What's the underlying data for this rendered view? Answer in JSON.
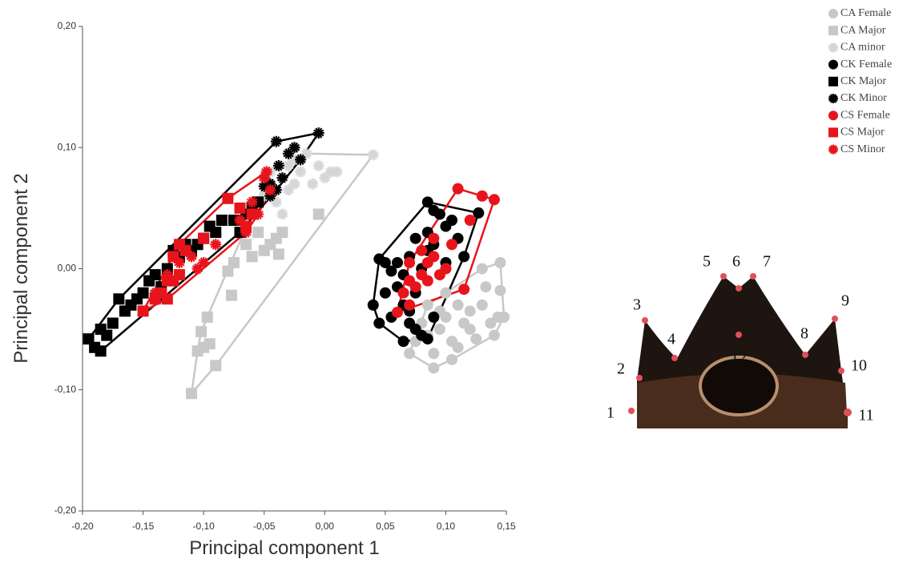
{
  "chart_data": {
    "type": "scatter",
    "x_label": "Principal component 1",
    "y_label": "Principal component 2",
    "xlim": [
      -0.2,
      0.15
    ],
    "ylim": [
      -0.2,
      0.2
    ],
    "xticks": [
      {
        "value": -0.2,
        "label": "-0,20"
      },
      {
        "value": -0.15,
        "label": "-0,15"
      },
      {
        "value": -0.1,
        "label": "-0,10"
      },
      {
        "value": -0.05,
        "label": "-0,05"
      },
      {
        "value": 0,
        "label": "0,00"
      },
      {
        "value": 0.05,
        "label": "0,05"
      },
      {
        "value": 0.1,
        "label": "0,10"
      },
      {
        "value": 0.15,
        "label": "0,15"
      }
    ],
    "yticks": [
      {
        "value": -0.2,
        "label": "-0,20"
      },
      {
        "value": -0.1,
        "label": "-0,10"
      },
      {
        "value": 0,
        "label": "0,00"
      },
      {
        "value": 0.1,
        "label": "0,10"
      },
      {
        "value": 0.2,
        "label": "0,20"
      }
    ],
    "legend": "top-right",
    "hull_groups": [
      [
        0
      ],
      [
        1,
        2
      ],
      [
        3
      ],
      [
        4,
        5
      ],
      [
        6
      ],
      [
        7,
        8
      ]
    ],
    "series": [
      {
        "name": "CA Female",
        "color": "#c8c8c8",
        "marker": "circle",
        "x": [
          0.07,
          0.09,
          0.075,
          0.085,
          0.095,
          0.1,
          0.105,
          0.11,
          0.115,
          0.12,
          0.12,
          0.13,
          0.133,
          0.137,
          0.14,
          0.143,
          0.145,
          0.145,
          0.148,
          0.09,
          0.105,
          0.125,
          0.11,
          0.095,
          0.08,
          0.1,
          0.13,
          0.085
        ],
        "values": [
          -0.07,
          -0.082,
          -0.06,
          -0.055,
          -0.05,
          -0.04,
          -0.06,
          -0.065,
          -0.045,
          -0.05,
          -0.035,
          -0.03,
          -0.015,
          -0.045,
          -0.055,
          -0.04,
          0.005,
          -0.018,
          -0.04,
          -0.07,
          -0.075,
          -0.058,
          -0.03,
          -0.035,
          -0.045,
          -0.02,
          0,
          -0.03
        ]
      },
      {
        "name": "CA Major",
        "color": "#c8c8c8",
        "marker": "square",
        "x": [
          -0.11,
          -0.105,
          -0.1,
          -0.102,
          -0.097,
          -0.095,
          -0.09,
          -0.08,
          -0.077,
          -0.06,
          -0.05,
          -0.04,
          -0.035,
          -0.038,
          -0.045,
          -0.005,
          -0.075,
          -0.065,
          -0.055
        ],
        "values": [
          -0.103,
          -0.068,
          -0.065,
          -0.052,
          -0.04,
          -0.062,
          -0.08,
          -0.002,
          -0.022,
          0.01,
          0.015,
          0.025,
          0.03,
          0.012,
          0.02,
          0.045,
          0.005,
          0.02,
          0.03
        ]
      },
      {
        "name": "CA minor",
        "color": "#d6d6d6",
        "marker": "star",
        "x": [
          -0.05,
          -0.04,
          -0.03,
          -0.025,
          -0.02,
          -0.01,
          0,
          0.005,
          0.01,
          -0.005,
          -0.025,
          0.04,
          -0.045,
          -0.035,
          -0.015,
          -0.03
        ],
        "values": [
          0.06,
          0.055,
          0.065,
          0.07,
          0.08,
          0.07,
          0.075,
          0.08,
          0.08,
          0.085,
          0.09,
          0.094,
          0.08,
          0.045,
          0.095,
          0.085
        ]
      },
      {
        "name": "CK Female",
        "color": "#000000",
        "marker": "circle",
        "x": [
          0.045,
          0.04,
          0.045,
          0.05,
          0.055,
          0.06,
          0.055,
          0.065,
          0.065,
          0.07,
          0.075,
          0.08,
          0.085,
          0.06,
          0.07,
          0.075,
          0.08,
          0.085,
          0.09,
          0.085,
          0.085,
          0.09,
          0.095,
          0.1,
          0.105,
          0.11,
          0.127,
          0.115,
          0.1,
          0.075,
          0.065,
          0.05,
          0.07,
          0.09
        ],
        "values": [
          0.008,
          -0.03,
          -0.045,
          -0.02,
          -0.002,
          0.005,
          -0.04,
          -0.03,
          -0.06,
          -0.045,
          -0.05,
          -0.055,
          -0.058,
          -0.015,
          0.01,
          -0.02,
          0,
          0.015,
          0.02,
          0.03,
          0.055,
          0.048,
          0.045,
          0.035,
          0.04,
          0.025,
          0.046,
          0.01,
          0.005,
          0.025,
          -0.005,
          0.005,
          -0.035,
          -0.04
        ]
      },
      {
        "name": "CK Major",
        "color": "#000000",
        "marker": "square",
        "x": [
          -0.195,
          -0.19,
          -0.185,
          -0.185,
          -0.18,
          -0.175,
          -0.17,
          -0.16,
          -0.155,
          -0.15,
          -0.14,
          -0.135,
          -0.13,
          -0.125,
          -0.12,
          -0.115,
          -0.105,
          -0.1,
          -0.09,
          -0.085,
          -0.075,
          -0.07,
          -0.065,
          -0.055,
          -0.06,
          -0.095,
          -0.11,
          -0.145,
          -0.165
        ],
        "values": [
          -0.058,
          -0.065,
          -0.068,
          -0.05,
          -0.055,
          -0.045,
          -0.025,
          -0.03,
          -0.025,
          -0.02,
          -0.005,
          -0.015,
          0,
          0.015,
          0.01,
          0.02,
          0.02,
          0.025,
          0.03,
          0.04,
          0.04,
          0.03,
          0.045,
          0.055,
          0.05,
          0.035,
          0.015,
          -0.01,
          -0.035
        ]
      },
      {
        "name": "CK Minor",
        "color": "#000000",
        "marker": "star",
        "x": [
          -0.04,
          -0.03,
          -0.025,
          -0.005,
          -0.02,
          -0.035,
          -0.04,
          -0.045,
          -0.045,
          -0.05,
          -0.055,
          -0.038
        ],
        "values": [
          0.105,
          0.095,
          0.1,
          0.112,
          0.09,
          0.075,
          0.065,
          0.07,
          0.06,
          0.068,
          0.055,
          0.085
        ]
      },
      {
        "name": "CS Female",
        "color": "#e8141b",
        "marker": "circle",
        "x": [
          0.06,
          0.065,
          0.07,
          0.07,
          0.075,
          0.08,
          0.08,
          0.085,
          0.09,
          0.095,
          0.1,
          0.105,
          0.11,
          0.115,
          0.12,
          0.13,
          0.14,
          0.085,
          0.09,
          0.07
        ],
        "values": [
          -0.036,
          -0.02,
          -0.03,
          -0.01,
          -0.015,
          -0.005,
          0.015,
          0.005,
          0.01,
          -0.005,
          0,
          0.02,
          0.066,
          -0.017,
          0.04,
          0.06,
          0.057,
          -0.01,
          0.025,
          0.005
        ]
      },
      {
        "name": "CS Major",
        "color": "#e8141b",
        "marker": "square",
        "x": [
          -0.15,
          -0.14,
          -0.135,
          -0.13,
          -0.125,
          -0.12,
          -0.13,
          -0.125,
          -0.12,
          -0.115,
          -0.1,
          -0.08,
          -0.07,
          -0.06,
          -0.065
        ],
        "values": [
          -0.035,
          -0.025,
          -0.02,
          -0.025,
          -0.01,
          -0.005,
          -0.01,
          0.01,
          0.02,
          0.015,
          0.025,
          0.058,
          0.05,
          0.045,
          0.035
        ]
      },
      {
        "name": "CS Minor",
        "color": "#e8141b",
        "marker": "star",
        "x": [
          -0.14,
          -0.13,
          -0.12,
          -0.11,
          -0.105,
          -0.1,
          -0.09,
          -0.07,
          -0.06,
          -0.055,
          -0.05,
          -0.048,
          -0.045,
          -0.065
        ],
        "values": [
          -0.02,
          -0.005,
          0.005,
          0.01,
          0,
          0.005,
          0.02,
          0.04,
          0.055,
          0.045,
          0.075,
          0.08,
          0.065,
          0.03
        ]
      }
    ]
  },
  "figure": {
    "landmark_labels": [
      "1",
      "2",
      "3",
      "4",
      "5",
      "6",
      "7",
      "8",
      "9",
      "10",
      "11",
      "12"
    ]
  }
}
